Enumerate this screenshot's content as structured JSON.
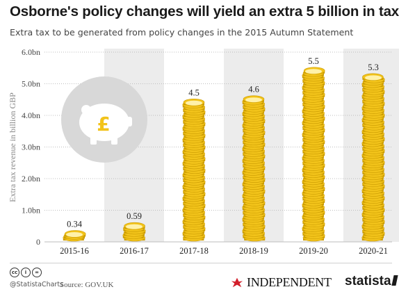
{
  "title": "Osborne's policy changes will yield an extra 5 billion in tax",
  "subtitle": "Extra tax to be generated from policy changes in the 2015 Autumn Statement",
  "chart_data": {
    "type": "bar",
    "categories": [
      "2015-16",
      "2016-17",
      "2017-18",
      "2018-19",
      "2019-20",
      "2020-21"
    ],
    "values": [
      0.34,
      0.59,
      4.5,
      4.6,
      5.5,
      5.3
    ],
    "value_labels": [
      "0.34",
      "0.59",
      "4.5",
      "4.6",
      "5.5",
      "5.3"
    ],
    "ylabel": "Extra tax revenue in billion GBP",
    "ylim": [
      0,
      6
    ],
    "yticks": [
      0,
      1,
      2,
      3,
      4,
      5,
      6
    ],
    "ytick_labels": [
      "0",
      "1.0bn",
      "2.0bn",
      "3.0bn",
      "4.0bn",
      "5.0bn",
      "6.0bn"
    ],
    "bar_style": "stacked gold coins",
    "colors": {
      "coin": "#f2c31a",
      "coin_edge": "#c99a00",
      "coin_top": "#fff1a8",
      "band": "#ececec",
      "piggy_circle": "#d8d8d8"
    },
    "decoration": "piggy-bank-pound-icon"
  },
  "footer": {
    "handle": "@StatistaCharts",
    "source": "Source: GOV.UK",
    "cc_icons": [
      "cc",
      "i",
      "="
    ],
    "independent": "INDEPENDENT",
    "statista": "statista"
  }
}
